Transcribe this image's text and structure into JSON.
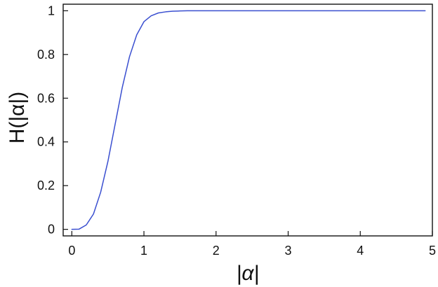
{
  "chart_data": {
    "type": "line",
    "title": "",
    "xlabel": "|α|",
    "ylabel": "H(|α|)",
    "xlim": [
      -0.12,
      5.0
    ],
    "ylim": [
      -0.03,
      1.03
    ],
    "grid": false,
    "legend": "none",
    "x_ticks": [
      0,
      1,
      2,
      3,
      4,
      5
    ],
    "y_ticks": [
      0,
      0.2,
      0.4,
      0.6,
      0.8,
      1
    ],
    "x_tick_labels": [
      "0",
      "1",
      "2",
      "3",
      "4",
      "5"
    ],
    "y_tick_labels": [
      "0",
      "0.2",
      "0.4",
      "0.6",
      "0.8",
      "1"
    ],
    "series": [
      {
        "color": "#3a4fd0",
        "x": [
          0.0,
          0.1,
          0.2,
          0.3,
          0.4,
          0.5,
          0.6,
          0.7,
          0.8,
          0.9,
          1.0,
          1.1,
          1.2,
          1.3,
          1.4,
          1.5,
          1.6,
          1.7,
          1.8,
          1.9,
          2.0,
          2.5,
          3.0,
          3.5,
          4.0,
          4.5,
          4.9
        ],
        "values": [
          0.0,
          0.001,
          0.02,
          0.07,
          0.17,
          0.31,
          0.48,
          0.65,
          0.79,
          0.89,
          0.95,
          0.977,
          0.99,
          0.995,
          0.998,
          0.999,
          1.0,
          1.0,
          1.0,
          1.0,
          1.0,
          1.0,
          1.0,
          1.0,
          1.0,
          1.0,
          1.0
        ]
      }
    ]
  }
}
